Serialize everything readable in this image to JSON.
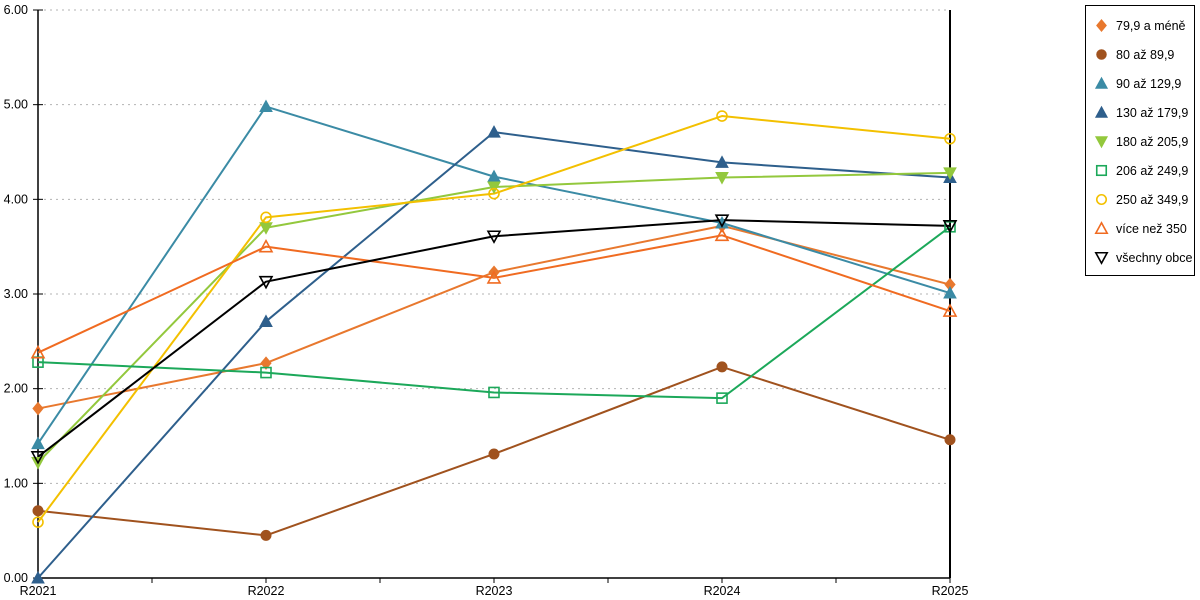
{
  "chart_data": {
    "type": "line",
    "title": "",
    "xlabel": "",
    "ylabel": "",
    "categories": [
      "R2021",
      "R2022",
      "R2023",
      "R2024",
      "R2025"
    ],
    "series": [
      {
        "name": "79,9 a méně",
        "color": "#E8782E",
        "marker": "diamond",
        "fill": "filled",
        "values": [
          1.79,
          2.27,
          3.23,
          3.72,
          3.1
        ]
      },
      {
        "name": "80 až 89,9",
        "color": "#A0521E",
        "marker": "circle",
        "fill": "filled",
        "values": [
          0.71,
          0.45,
          1.31,
          2.23,
          1.46
        ]
      },
      {
        "name": "90 až 129,9",
        "color": "#3B8BA5",
        "marker": "triangle-up",
        "fill": "filled",
        "values": [
          1.42,
          4.98,
          4.24,
          3.75,
          3.01
        ]
      },
      {
        "name": "130 až 179,9",
        "color": "#2E5F8C",
        "marker": "triangle-up",
        "fill": "filled",
        "values": [
          0.0,
          2.71,
          4.71,
          4.39,
          4.23
        ]
      },
      {
        "name": "180 až 205,9",
        "color": "#93C83D",
        "marker": "triangle-down",
        "fill": "filled",
        "values": [
          1.22,
          3.7,
          4.13,
          4.23,
          4.28
        ]
      },
      {
        "name": "206 až 249,9",
        "color": "#1CA85A",
        "marker": "square",
        "fill": "open",
        "values": [
          2.28,
          2.17,
          1.96,
          1.9,
          3.71
        ]
      },
      {
        "name": "250 až 349,9",
        "color": "#F3C000",
        "marker": "circle",
        "fill": "open",
        "values": [
          0.59,
          3.81,
          4.06,
          4.88,
          4.64
        ]
      },
      {
        "name": "více než 350",
        "color": "#F06B21",
        "marker": "triangle-up",
        "fill": "open",
        "values": [
          2.38,
          3.5,
          3.17,
          3.62,
          2.82
        ]
      },
      {
        "name": "všechny obce",
        "color": "#000000",
        "marker": "triangle-down",
        "fill": "open",
        "values": [
          1.28,
          3.13,
          3.61,
          3.78,
          3.72
        ]
      }
    ],
    "ylim": [
      0,
      6
    ],
    "y_tick_labels": [
      "0.00",
      "1.00",
      "2.00",
      "3.00",
      "4.00",
      "5.00",
      "6.00"
    ],
    "grid": "horizontal-dotted",
    "gridline_color": "#b3b3b3",
    "axis_color": "#000000",
    "legend_position": "right"
  }
}
